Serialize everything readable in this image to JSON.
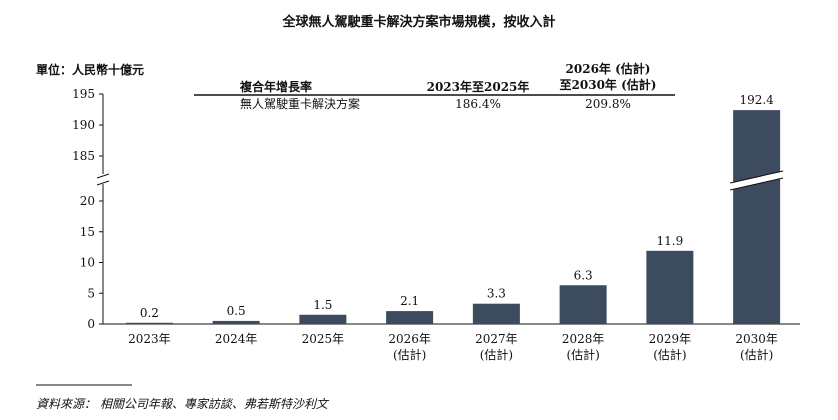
{
  "chart_data": {
    "type": "bar",
    "title": "全球無人駕駛重卡解決方案市場規模，按收入計",
    "unit_label": "單位：人民幣十億元",
    "categories": [
      {
        "year": "2023年",
        "note": ""
      },
      {
        "year": "2024年",
        "note": ""
      },
      {
        "year": "2025年",
        "note": ""
      },
      {
        "year": "2026年",
        "note": "(估計)"
      },
      {
        "year": "2027年",
        "note": "(估計)"
      },
      {
        "year": "2028年",
        "note": "(估計)"
      },
      {
        "year": "2029年",
        "note": "(估計)"
      },
      {
        "year": "2030年",
        "note": "(估計)"
      }
    ],
    "values": [
      0.2,
      0.5,
      1.5,
      2.1,
      3.3,
      6.3,
      11.9,
      192.4
    ],
    "value_labels": [
      "0.2",
      "0.5",
      "1.5",
      "2.1",
      "3.3",
      "6.3",
      "11.9",
      "192.4"
    ],
    "axis_break": true,
    "y_lower": {
      "range": [
        0,
        20
      ],
      "ticks": [
        "0",
        "5",
        "10",
        "15",
        "20"
      ]
    },
    "y_upper": {
      "range": [
        185,
        195
      ],
      "ticks": [
        "185",
        "190",
        "195"
      ]
    },
    "bar_color": "#3d4b5f",
    "grid": false,
    "cagr_table": {
      "header": "複合年增長率",
      "col1": "2023年至2025年",
      "col2_line1": "2026年 (估計)",
      "col2_line2": "至2030年 (估計)",
      "row_label": "無人駕駛重卡解決方案",
      "row_val1": "186.4%",
      "row_val2": "209.8%"
    }
  },
  "source": "資料來源： 相關公司年報、專家訪談、弗若斯特沙利文"
}
